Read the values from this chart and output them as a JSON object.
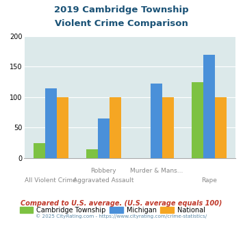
{
  "title_line1": "2019 Cambridge Township",
  "title_line2": "Violent Crime Comparison",
  "tick_labels_top": [
    "",
    "Robbery",
    "Murder & Mans...",
    ""
  ],
  "tick_labels_bottom": [
    "All Violent Crime",
    "Aggravated Assault",
    "",
    "Rape"
  ],
  "cambridge": [
    25,
    15,
    0,
    125
  ],
  "michigan": [
    115,
    65,
    122,
    170
  ],
  "national": [
    100,
    100,
    100,
    100
  ],
  "cambridge_color": "#7dc242",
  "michigan_color": "#4a90d9",
  "national_color": "#f5a623",
  "ylim": [
    0,
    200
  ],
  "yticks": [
    0,
    50,
    100,
    150,
    200
  ],
  "legend_labels": [
    "Cambridge Township",
    "Michigan",
    "National"
  ],
  "footnote1": "Compared to U.S. average. (U.S. average equals 100)",
  "footnote2": "© 2025 CityRating.com - https://www.cityrating.com/crime-statistics/",
  "title_color": "#1a5276",
  "footnote1_color": "#c0392b",
  "footnote2_color": "#5d8aa8",
  "bg_color": "#dce9ea",
  "bar_width": 0.22
}
